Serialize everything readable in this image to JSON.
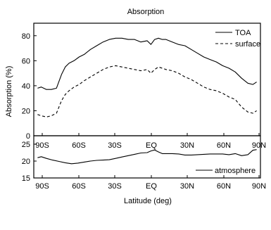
{
  "chart_data": [
    {
      "type": "line",
      "title": "Absorption",
      "ylabel": "Absorption (%)",
      "xlabel": "",
      "x_tick_labels": [
        "90S",
        "60S",
        "30S",
        "EQ",
        "30N",
        "60N",
        "90N"
      ],
      "xlim": [
        -90,
        90
      ],
      "ylim": [
        0,
        90
      ],
      "y_ticks": [
        0,
        20,
        40,
        60,
        80
      ],
      "grid": false,
      "legend_position": "top-right",
      "series": [
        {
          "name": "TOA",
          "style": "solid",
          "x": [
            -87,
            -84,
            -80,
            -76,
            -72,
            -68,
            -65,
            -62,
            -58,
            -54,
            -50,
            -45,
            -40,
            -35,
            -30,
            -25,
            -20,
            -15,
            -10,
            -5,
            0,
            3,
            6,
            9,
            12,
            15,
            20,
            25,
            30,
            35,
            40,
            45,
            50,
            55,
            60,
            65,
            70,
            75,
            80,
            84,
            87
          ],
          "y": [
            38,
            39,
            37,
            37,
            38,
            49,
            55,
            58,
            60,
            63,
            65,
            69,
            72,
            75,
            77,
            78,
            78,
            77,
            77,
            75,
            76,
            73,
            77,
            78,
            77,
            77,
            75,
            73,
            72,
            69,
            66,
            63,
            61,
            59,
            56,
            54,
            51,
            46,
            42,
            41,
            43
          ]
        },
        {
          "name": "surface",
          "style": "dashed",
          "x": [
            -87,
            -84,
            -80,
            -76,
            -72,
            -68,
            -65,
            -62,
            -58,
            -54,
            -50,
            -45,
            -40,
            -35,
            -30,
            -25,
            -20,
            -15,
            -10,
            -5,
            0,
            3,
            6,
            9,
            12,
            15,
            20,
            25,
            30,
            35,
            40,
            45,
            50,
            55,
            60,
            65,
            70,
            75,
            80,
            84,
            87
          ],
          "y": [
            17,
            16,
            15,
            16,
            18,
            28,
            33,
            36,
            39,
            41,
            44,
            47,
            50,
            53,
            55,
            56,
            55,
            54,
            53,
            52,
            53,
            50,
            53,
            55,
            54,
            53,
            52,
            50,
            47,
            45,
            42,
            39,
            37,
            36,
            34,
            31,
            29,
            23,
            19,
            18,
            20
          ]
        }
      ]
    },
    {
      "type": "line",
      "title": "",
      "xlabel": "Latitude (deg)",
      "ylabel": "",
      "x_tick_labels": [
        "90S",
        "60S",
        "30S",
        "EQ",
        "30N",
        "60N",
        "90N"
      ],
      "xlim": [
        -90,
        90
      ],
      "ylim": [
        15,
        27.5
      ],
      "y_ticks": [
        15,
        20,
        25
      ],
      "grid": false,
      "legend_position": "bottom-right",
      "series": [
        {
          "name": "atmosphere",
          "style": "solid",
          "x": [
            -87,
            -84,
            -80,
            -75,
            -70,
            -65,
            -60,
            -55,
            -50,
            -45,
            -40,
            -35,
            -30,
            -25,
            -20,
            -15,
            -10,
            -5,
            0,
            3,
            6,
            9,
            12,
            15,
            20,
            25,
            30,
            35,
            40,
            45,
            50,
            55,
            60,
            65,
            70,
            75,
            80,
            84,
            87
          ],
          "y": [
            21,
            21.3,
            20.8,
            20.3,
            19.9,
            19.5,
            19.2,
            19.4,
            19.7,
            20,
            20.2,
            20.3,
            20.4,
            20.8,
            21.2,
            21.6,
            22,
            22.4,
            22.5,
            23,
            23.3,
            22.7,
            22.2,
            22.2,
            22.2,
            22.1,
            21.8,
            21.8,
            21.9,
            22,
            22.1,
            22.1,
            22.1,
            21.9,
            22.2,
            21.6,
            21.9,
            23.2,
            23.4
          ]
        }
      ]
    }
  ]
}
